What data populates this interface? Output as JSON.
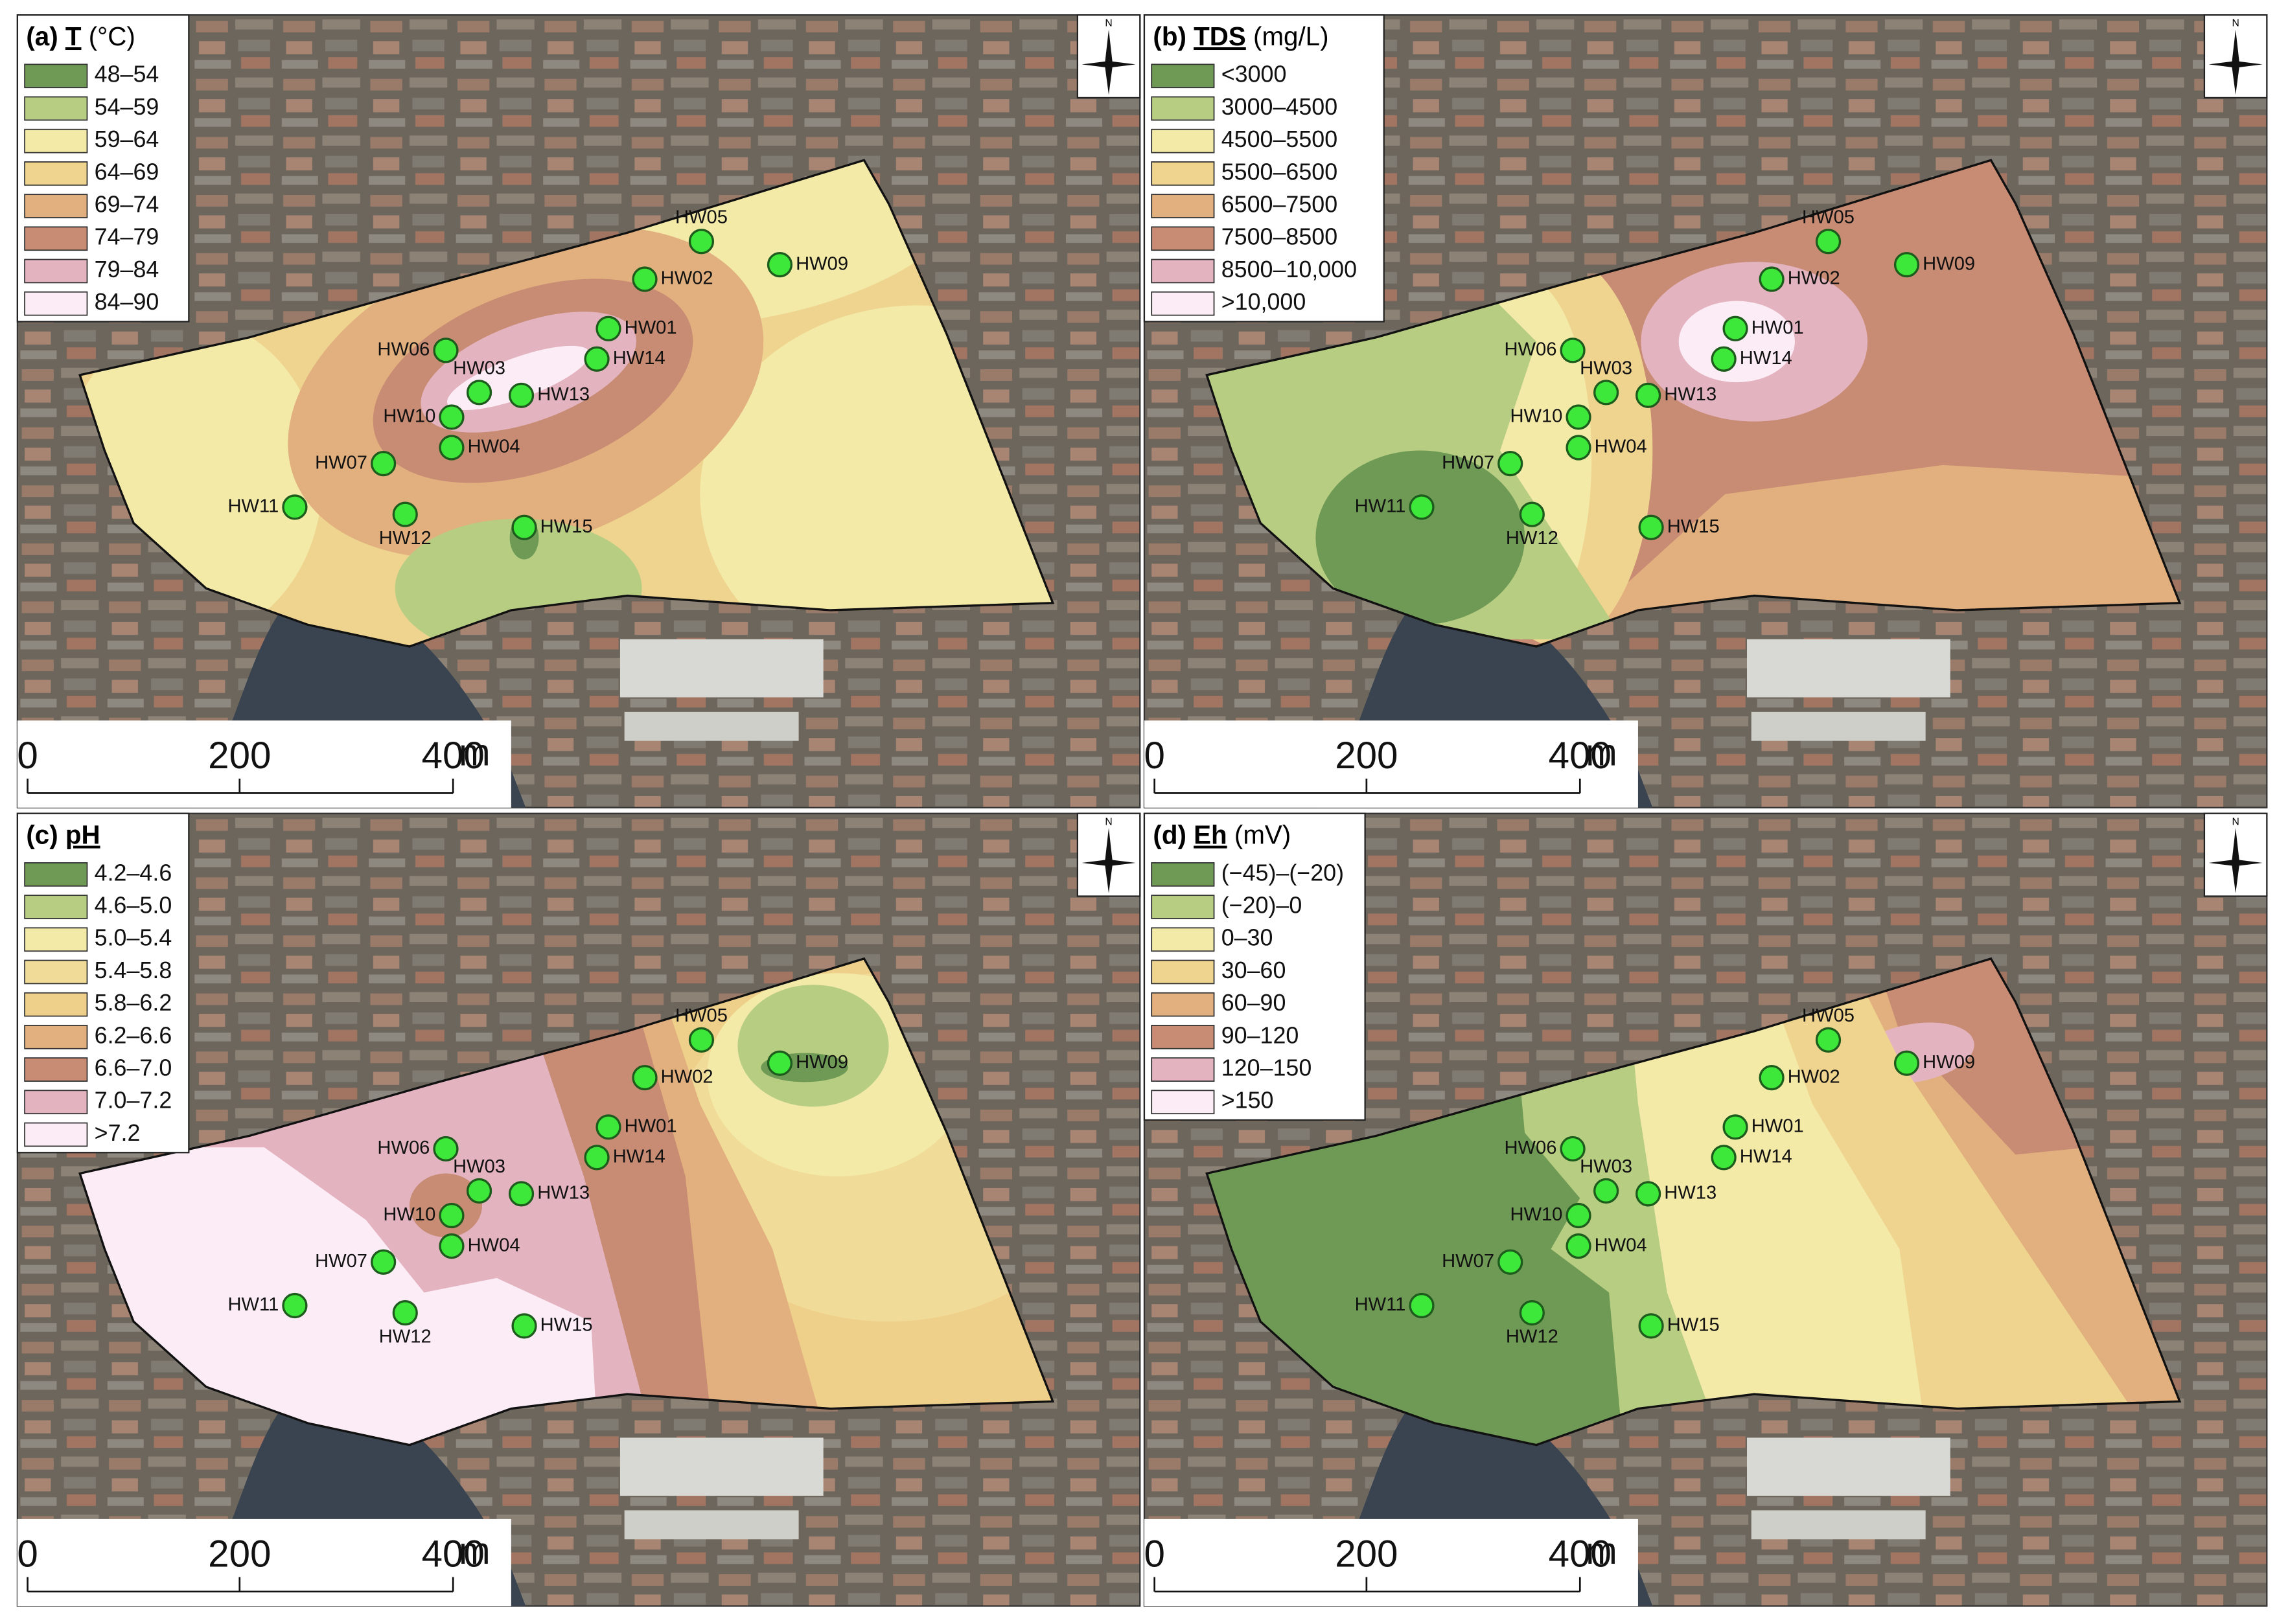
{
  "panels": [
    {
      "label": "(a)",
      "variable": "T",
      "unit": "(°C)",
      "legend": [
        {
          "label": "48–54",
          "color": "#6f9a55"
        },
        {
          "label": "54–59",
          "color": "#b7cd82"
        },
        {
          "label": "59–64",
          "color": "#f3eaa8"
        },
        {
          "label": "64–69",
          "color": "#efd48f"
        },
        {
          "label": "69–74",
          "color": "#e2b07e"
        },
        {
          "label": "74–79",
          "color": "#c88b73"
        },
        {
          "label": "79–84",
          "color": "#e3b4c0"
        },
        {
          "label": "84–90",
          "color": "#fcecf6"
        }
      ]
    },
    {
      "label": "(b)",
      "variable": "TDS",
      "unit": "(mg/L)",
      "legend": [
        {
          "label": "<3000",
          "color": "#6f9a55"
        },
        {
          "label": "3000–4500",
          "color": "#b7cd82"
        },
        {
          "label": "4500–5500",
          "color": "#f3eaa8"
        },
        {
          "label": "5500–6500",
          "color": "#efd48f"
        },
        {
          "label": "6500–7500",
          "color": "#e2b07e"
        },
        {
          "label": "7500–8500",
          "color": "#c88b73"
        },
        {
          "label": "8500–10,000",
          "color": "#e3b4c0"
        },
        {
          "label": ">10,000",
          "color": "#fcecf6"
        }
      ]
    },
    {
      "label": "(c)",
      "variable": "pH",
      "legend": [
        {
          "label": "4.2–4.6",
          "color": "#6f9a55"
        },
        {
          "label": "4.6–5.0",
          "color": "#b7cd82"
        },
        {
          "label": "5.0–5.4",
          "color": "#f3eaa8"
        },
        {
          "label": "5.4–5.8",
          "color": "#f0dc98"
        },
        {
          "label": "5.8–6.2",
          "color": "#efd08a"
        },
        {
          "label": "6.2–6.6",
          "color": "#e2b07e"
        },
        {
          "label": "6.6–7.0",
          "color": "#c88b73"
        },
        {
          "label": "7.0–7.2",
          "color": "#e3b4c0"
        },
        {
          "label": ">7.2",
          "color": "#fcecf6"
        }
      ]
    },
    {
      "label": "(d)",
      "variable": "Eh",
      "unit": "(mV)",
      "legend": [
        {
          "label": "(−45)–(−20)",
          "color": "#6f9a55"
        },
        {
          "label": "(−20)–0",
          "color": "#b7cd82"
        },
        {
          "label": "0–30",
          "color": "#f3eaa8"
        },
        {
          "label": "30–60",
          "color": "#efd48f"
        },
        {
          "label": "60–90",
          "color": "#e2b07e"
        },
        {
          "label": "90–120",
          "color": "#c88b73"
        },
        {
          "label": "120–150",
          "color": "#e3b4c0"
        },
        {
          "label": ">150",
          "color": "#fcecf6"
        }
      ]
    }
  ],
  "wells": [
    "HW01",
    "HW02",
    "HW03",
    "HW04",
    "HW05",
    "HW06",
    "HW07",
    "HW09",
    "HW10",
    "HW11",
    "HW12",
    "HW13",
    "HW14",
    "HW15"
  ],
  "scale_bar": {
    "labels": [
      "0",
      "200",
      "400"
    ],
    "unit": "m"
  },
  "north": "N"
}
